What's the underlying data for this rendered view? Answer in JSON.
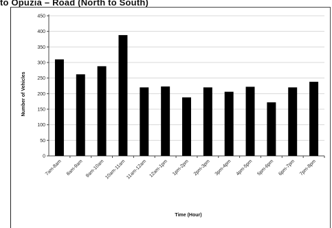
{
  "page": {
    "title": "to Opuzia – Road (North to South)"
  },
  "chart_data": {
    "type": "bar",
    "xlabel": "Time (Hour)",
    "ylabel": "Number of Vehicles",
    "ylim": [
      0,
      450
    ],
    "yticks": [
      0,
      50,
      100,
      150,
      200,
      250,
      300,
      350,
      400,
      450
    ],
    "grid": true,
    "legend": "none",
    "bar_color": "#000000",
    "grid_color": "#d8d8d8",
    "categories": [
      "7am-8am",
      "8am-9am",
      "9am-10am",
      "10am-11am",
      "11am-12am",
      "12am-1pm",
      "1pm-2pm",
      "2pm-3pm",
      "3pm-4pm",
      "4pm-5pm",
      "5pm-6pm",
      "6pm-7pm",
      "7pm-8pm"
    ],
    "values": [
      310,
      262,
      288,
      388,
      220,
      223,
      188,
      220,
      206,
      222,
      172,
      220,
      238
    ]
  }
}
